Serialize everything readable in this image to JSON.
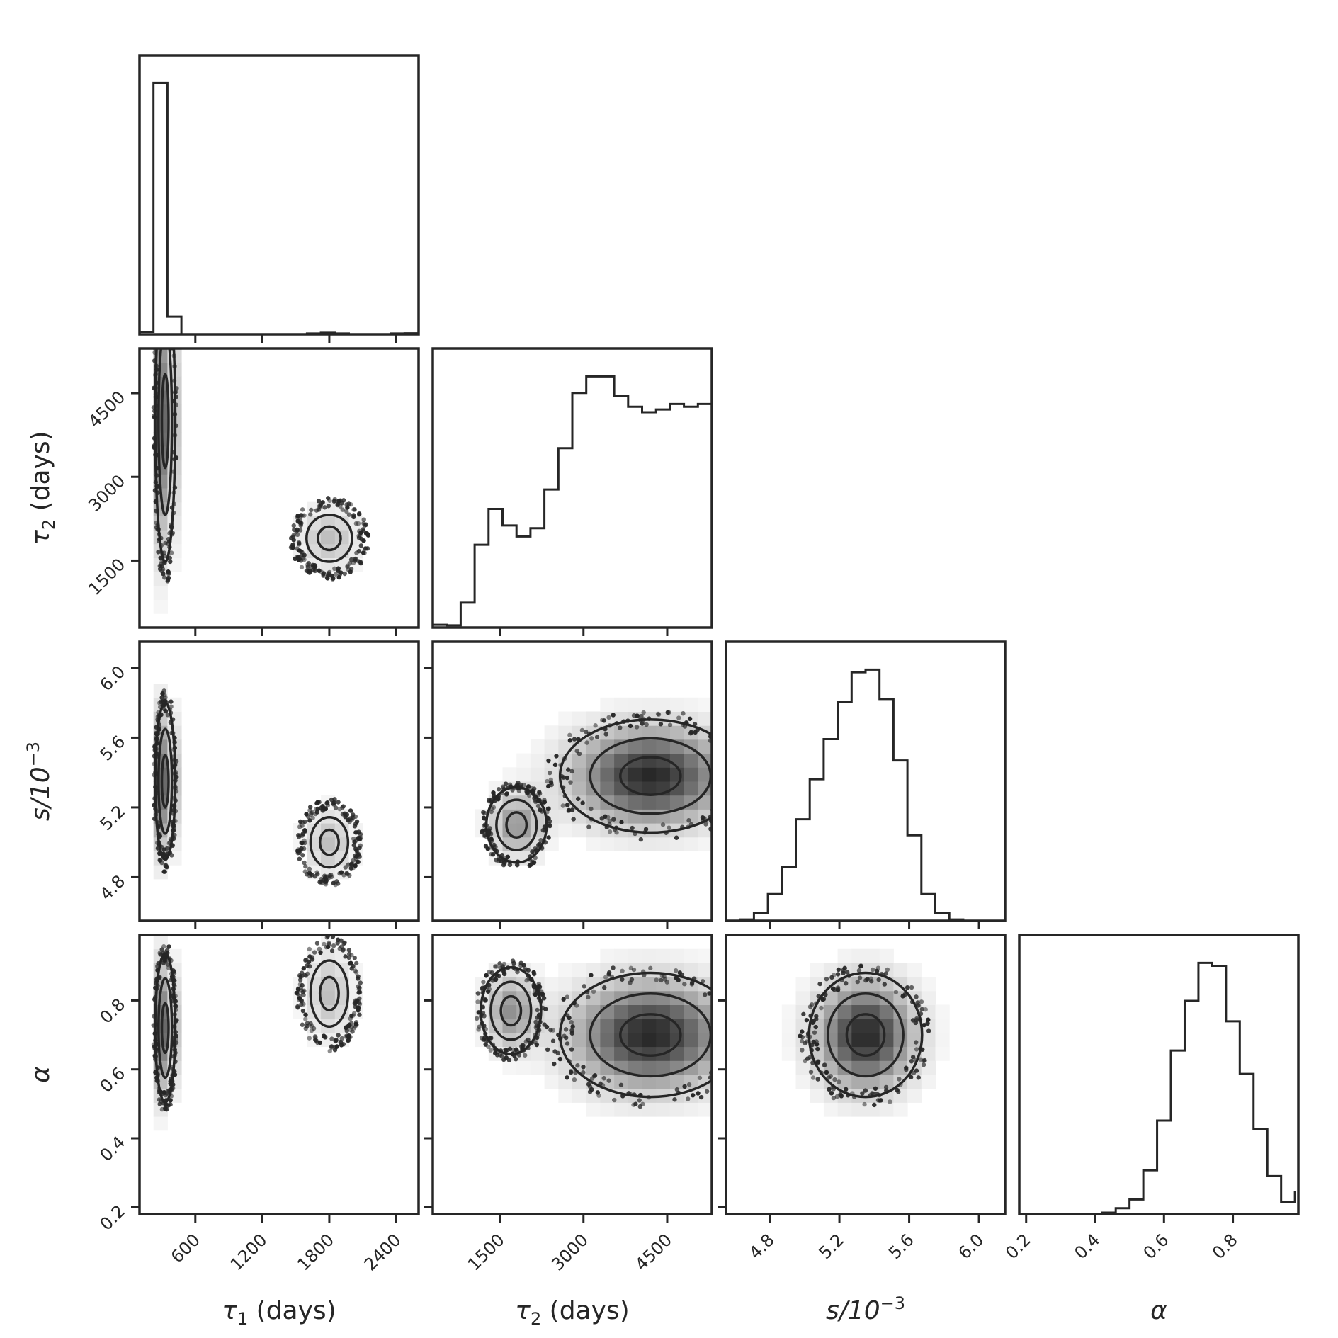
{
  "chart_data": {
    "type": "corner",
    "parameters": [
      {
        "key": "tau1",
        "label_main": "τ",
        "label_sub": "1",
        "label_suffix": " (days)",
        "range": [
          100,
          2600
        ],
        "ticks": [
          600,
          1200,
          1800,
          2400
        ]
      },
      {
        "key": "tau2",
        "label_main": "τ",
        "label_sub": "2",
        "label_suffix": " (days)",
        "range": [
          300,
          5300
        ],
        "ticks": [
          1500,
          3000,
          4500
        ]
      },
      {
        "key": "s",
        "label_main": "s/10",
        "label_sup": "−3",
        "range": [
          4.55,
          6.15
        ],
        "ticks": [
          4.8,
          5.2,
          5.6,
          6.0
        ]
      },
      {
        "key": "alpha",
        "label_main": "α",
        "range": [
          0.18,
          0.99
        ],
        "ticks": [
          0.2,
          0.4,
          0.6,
          0.8
        ]
      }
    ],
    "tick_labels": {
      "tau1": [
        "600",
        "1200",
        "1800",
        "2400"
      ],
      "tau2": [
        "1500",
        "3000",
        "4500"
      ],
      "s": [
        "4.8",
        "5.2",
        "5.6",
        "6.0"
      ],
      "alpha": [
        "0.2",
        "0.4",
        "0.6",
        "0.8"
      ]
    },
    "histograms": {
      "tau1": {
        "bins": [
          100,
          225,
          350,
          475,
          600,
          725,
          850,
          975,
          1100,
          1225,
          1350,
          1475,
          1600,
          1725,
          1850,
          1975,
          2100,
          2225,
          2350,
          2475,
          2600
        ],
        "counts": [
          0.01,
          1.0,
          0.07,
          0.0,
          0.0,
          0.0,
          0.0,
          0.0,
          0.0,
          0.0,
          0.0,
          0.0,
          0.003,
          0.006,
          0.003,
          0.0,
          0.0,
          0.0,
          0.003,
          0.004
        ]
      },
      "tau2": {
        "bins": [
          300,
          550,
          800,
          1050,
          1300,
          1550,
          1800,
          2050,
          2300,
          2550,
          2800,
          3050,
          3300,
          3550,
          3800,
          4050,
          4300,
          4550,
          4800,
          5050,
          5300
        ],
        "counts": [
          0.01,
          0.008,
          0.09,
          0.3,
          0.43,
          0.37,
          0.33,
          0.36,
          0.5,
          0.65,
          0.85,
          0.91,
          0.91,
          0.84,
          0.8,
          0.78,
          0.79,
          0.81,
          0.8,
          0.81
        ]
      },
      "s": {
        "bins": [
          4.55,
          4.63,
          4.71,
          4.79,
          4.87,
          4.95,
          5.03,
          5.11,
          5.19,
          5.27,
          5.35,
          5.43,
          5.51,
          5.59,
          5.67,
          5.75,
          5.83,
          5.91,
          5.99,
          6.07,
          6.15
        ],
        "counts": [
          0.0,
          0.005,
          0.03,
          0.1,
          0.2,
          0.38,
          0.53,
          0.68,
          0.82,
          0.93,
          0.94,
          0.83,
          0.6,
          0.32,
          0.1,
          0.03,
          0.005,
          0.0,
          0.0,
          0.0
        ]
      },
      "alpha": {
        "bins": [
          0.18,
          0.22,
          0.26,
          0.3,
          0.34,
          0.38,
          0.42,
          0.46,
          0.5,
          0.54,
          0.58,
          0.62,
          0.66,
          0.7,
          0.74,
          0.78,
          0.82,
          0.86,
          0.9,
          0.94,
          0.98
        ],
        "counts": [
          0.0,
          0.0,
          0.0,
          0.0,
          0.0,
          0.0,
          0.005,
          0.02,
          0.05,
          0.15,
          0.32,
          0.56,
          0.73,
          0.86,
          0.85,
          0.66,
          0.48,
          0.29,
          0.13,
          0.04,
          0.08
        ]
      }
    },
    "pairs": [
      {
        "x": "tau1",
        "y": "tau2",
        "centers": [
          [
            330,
            4000,
            50,
            1400,
            1
          ],
          [
            1800,
            1900,
            170,
            350,
            0.3
          ]
        ]
      },
      {
        "x": "tau1",
        "y": "s",
        "centers": [
          [
            330,
            5.35,
            50,
            0.25,
            1
          ],
          [
            1800,
            5.0,
            140,
            0.12,
            0.3
          ]
        ]
      },
      {
        "x": "tau1",
        "y": "alpha",
        "centers": [
          [
            330,
            0.72,
            50,
            0.12,
            1
          ],
          [
            1800,
            0.82,
            140,
            0.08,
            0.3
          ]
        ]
      },
      {
        "x": "tau2",
        "y": "s",
        "centers": [
          [
            4200,
            5.38,
            900,
            0.18,
            1
          ],
          [
            1800,
            5.1,
            300,
            0.12,
            0.5
          ]
        ]
      },
      {
        "x": "tau2",
        "y": "alpha",
        "centers": [
          [
            4200,
            0.7,
            900,
            0.1,
            1
          ],
          [
            1700,
            0.77,
            300,
            0.07,
            0.5
          ]
        ]
      },
      {
        "x": "s",
        "y": "alpha",
        "centers": [
          [
            5.35,
            0.7,
            0.18,
            0.1,
            1
          ]
        ]
      }
    ],
    "grid": false,
    "legend": "none"
  }
}
